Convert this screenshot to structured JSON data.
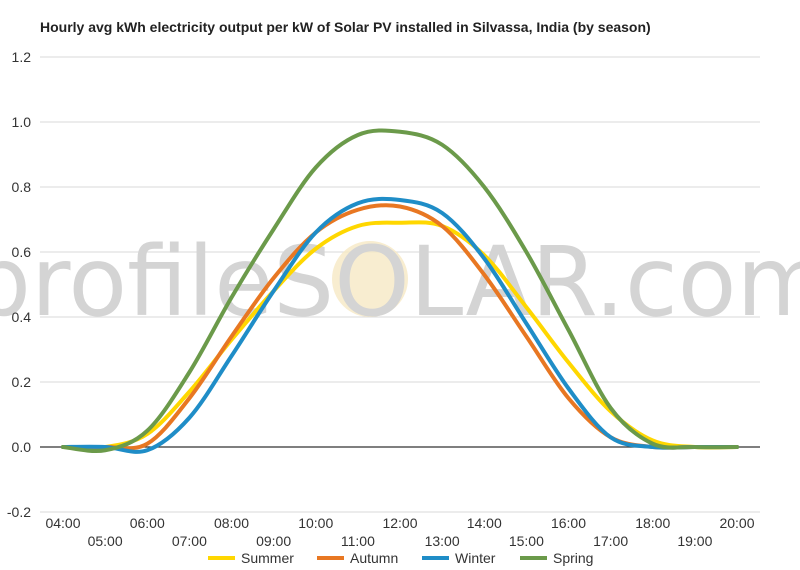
{
  "chart_data": {
    "type": "line",
    "title": "Hourly avg kWh electricity output per kW of Solar PV installed in Silvassa, India (by season)",
    "xlabel": "",
    "ylabel": "",
    "x": [
      "04:00",
      "05:00",
      "06:00",
      "07:00",
      "08:00",
      "09:00",
      "10:00",
      "11:00",
      "12:00",
      "13:00",
      "14:00",
      "15:00",
      "16:00",
      "17:00",
      "18:00",
      "19:00",
      "20:00"
    ],
    "x_tick_labels": [
      "04:00",
      "05:00",
      "06:00",
      "07:00",
      "08:00",
      "09:00",
      "10:00",
      "11:00",
      "12:00",
      "13:00",
      "14:00",
      "15:00",
      "16:00",
      "17:00",
      "18:00",
      "19:00",
      "20:00"
    ],
    "ylim": [
      -0.2,
      1.2
    ],
    "y_ticks": [
      -0.2,
      0.0,
      0.2,
      0.4,
      0.6,
      0.8,
      1.0,
      1.2
    ],
    "y_tick_labels": [
      "-0.2",
      "0.0",
      "0.2",
      "0.4",
      "0.6",
      "0.8",
      "1.0",
      "1.2"
    ],
    "grid": true,
    "legend_position": "bottom",
    "watermark": "profileSOLAR.com",
    "series": [
      {
        "name": "Summer",
        "color": "#FFD700",
        "values": [
          0.0,
          0.0,
          0.04,
          0.17,
          0.33,
          0.48,
          0.61,
          0.68,
          0.69,
          0.68,
          0.59,
          0.43,
          0.26,
          0.11,
          0.02,
          0.0,
          0.0
        ]
      },
      {
        "name": "Autumn",
        "color": "#E87722",
        "values": [
          0.0,
          0.0,
          0.01,
          0.15,
          0.34,
          0.52,
          0.66,
          0.73,
          0.74,
          0.68,
          0.53,
          0.34,
          0.15,
          0.03,
          0.0,
          0.0,
          0.0
        ]
      },
      {
        "name": "Winter",
        "color": "#1F8DC7",
        "values": [
          0.0,
          0.0,
          -0.01,
          0.09,
          0.28,
          0.48,
          0.66,
          0.75,
          0.76,
          0.72,
          0.58,
          0.38,
          0.18,
          0.03,
          0.0,
          0.0,
          0.0
        ]
      },
      {
        "name": "Spring",
        "color": "#6B9A4A",
        "values": [
          0.0,
          -0.01,
          0.05,
          0.23,
          0.46,
          0.67,
          0.86,
          0.96,
          0.97,
          0.93,
          0.8,
          0.6,
          0.36,
          0.12,
          0.01,
          0.0,
          0.0
        ]
      }
    ]
  }
}
